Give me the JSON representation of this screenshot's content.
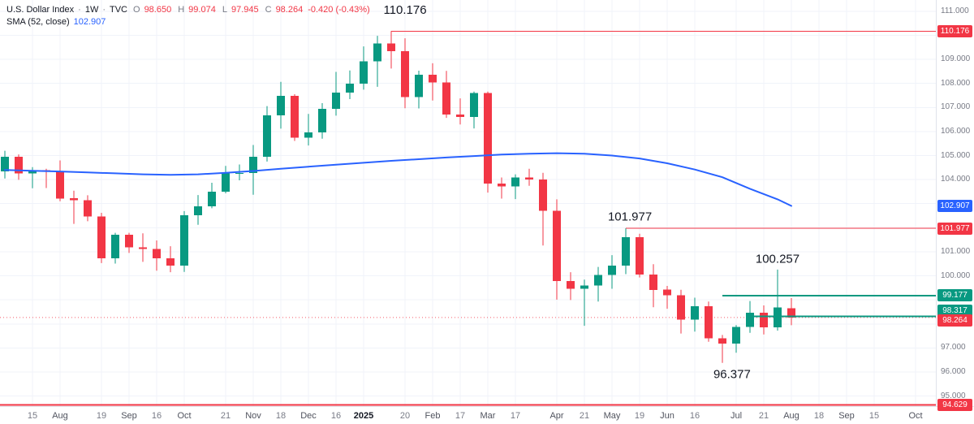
{
  "legend": {
    "symbol": "U.S. Dollar Index",
    "delimiter": "·",
    "interval": "1W",
    "exchange": "TVC",
    "o_key": "O",
    "o_val": "98.650",
    "h_key": "H",
    "h_val": "99.074",
    "l_key": "L",
    "l_val": "97.945",
    "c_key": "C",
    "c_val": "98.264",
    "change": "-0.420 (-0.43%)",
    "sma_label": "SMA (52, close)",
    "sma_value": "102.907"
  },
  "chart_data": {
    "type": "candlestick",
    "title": "U.S. Dollar Index · 1W · TVC",
    "x_unit": "week",
    "ylim": [
      94.58,
      111.47
    ],
    "grid": true,
    "current_price": 98.264,
    "colors": {
      "up": "#089981",
      "down": "#f23645",
      "sma": "#2962ff",
      "grid": "#f0f3fa",
      "level_red": "#f23645",
      "level_teal": "#089981"
    },
    "candles": [
      [
        104.35,
        105.2,
        104.05,
        104.95
      ],
      [
        104.95,
        105.05,
        103.99,
        104.25
      ],
      [
        104.25,
        104.52,
        103.64,
        104.4
      ],
      [
        104.4,
        104.45,
        103.65,
        104.32
      ],
      [
        104.32,
        104.8,
        103.1,
        103.22
      ],
      [
        103.22,
        103.54,
        102.16,
        103.14
      ],
      [
        103.14,
        103.35,
        102.27,
        102.46
      ],
      [
        102.46,
        102.62,
        100.53,
        100.72
      ],
      [
        100.72,
        101.79,
        100.51,
        101.7
      ],
      [
        101.7,
        101.79,
        100.95,
        101.19
      ],
      [
        101.19,
        101.77,
        100.58,
        101.11
      ],
      [
        101.11,
        101.47,
        100.21,
        100.72
      ],
      [
        100.72,
        101.23,
        100.15,
        100.42
      ],
      [
        100.42,
        102.69,
        100.16,
        102.52
      ],
      [
        102.52,
        103.36,
        102.12,
        102.89
      ],
      [
        102.89,
        103.87,
        102.81,
        103.49
      ],
      [
        103.49,
        104.57,
        103.43,
        104.26
      ],
      [
        104.26,
        104.63,
        103.97,
        104.28
      ],
      [
        104.28,
        105.44,
        103.37,
        104.95
      ],
      [
        104.95,
        107.06,
        104.75,
        106.67
      ],
      [
        106.67,
        108.07,
        106.12,
        107.49
      ],
      [
        107.49,
        107.55,
        105.61,
        105.74
      ],
      [
        105.74,
        106.73,
        105.42,
        105.97
      ],
      [
        105.97,
        107.18,
        105.7,
        106.95
      ],
      [
        106.95,
        108.48,
        106.66,
        107.62
      ],
      [
        107.62,
        108.54,
        107.35,
        107.99
      ],
      [
        107.99,
        109.54,
        107.74,
        108.92
      ],
      [
        108.92,
        109.98,
        107.86,
        109.66
      ],
      [
        109.66,
        110.176,
        108.62,
        109.35
      ],
      [
        109.35,
        109.88,
        106.97,
        107.44
      ],
      [
        107.44,
        108.53,
        106.96,
        108.37
      ],
      [
        108.37,
        108.84,
        107.29,
        108.04
      ],
      [
        108.04,
        108.52,
        106.57,
        106.71
      ],
      [
        106.71,
        107.38,
        106.29,
        106.61
      ],
      [
        106.61,
        107.66,
        106.13,
        107.61
      ],
      [
        107.61,
        107.66,
        103.46,
        103.84
      ],
      [
        103.84,
        104.09,
        103.21,
        103.72
      ],
      [
        103.72,
        104.22,
        103.19,
        104.09
      ],
      [
        104.09,
        104.45,
        103.74,
        104.01
      ],
      [
        104.01,
        104.28,
        101.26,
        102.7
      ],
      [
        102.7,
        103.18,
        99.01,
        99.78
      ],
      [
        99.78,
        100.15,
        98.99,
        99.46
      ],
      [
        99.46,
        99.84,
        97.92,
        99.59
      ],
      [
        99.59,
        100.37,
        98.93,
        100.03
      ],
      [
        100.03,
        100.86,
        99.46,
        100.42
      ],
      [
        100.42,
        101.977,
        100.07,
        101.6
      ],
      [
        101.6,
        101.75,
        99.93,
        100.05
      ],
      [
        100.05,
        100.48,
        98.69,
        99.42
      ],
      [
        99.42,
        99.58,
        98.63,
        99.19
      ],
      [
        99.19,
        99.42,
        97.6,
        98.18
      ],
      [
        98.18,
        99.09,
        97.68,
        98.74
      ],
      [
        98.74,
        98.93,
        97.26,
        97.4
      ],
      [
        97.4,
        97.54,
        96.377,
        97.18
      ],
      [
        97.18,
        97.95,
        96.8,
        97.87
      ],
      [
        97.87,
        98.95,
        97.63,
        98.46
      ],
      [
        98.46,
        98.77,
        97.56,
        97.85
      ],
      [
        97.85,
        100.257,
        97.72,
        98.68
      ],
      [
        98.65,
        99.074,
        97.945,
        98.264
      ]
    ],
    "sma": {
      "name": "SMA",
      "period": 52,
      "source": "close",
      "last_value": 102.907,
      "points": [
        [
          0,
          104.4
        ],
        [
          2,
          104.37
        ],
        [
          4,
          104.34
        ],
        [
          6,
          104.3
        ],
        [
          8,
          104.26
        ],
        [
          10,
          104.22
        ],
        [
          12,
          104.2
        ],
        [
          14,
          104.22
        ],
        [
          16,
          104.28
        ],
        [
          18,
          104.36
        ],
        [
          20,
          104.45
        ],
        [
          22,
          104.54
        ],
        [
          24,
          104.62
        ],
        [
          26,
          104.7
        ],
        [
          28,
          104.78
        ],
        [
          30,
          104.85
        ],
        [
          32,
          104.92
        ],
        [
          34,
          104.98
        ],
        [
          36,
          105.04
        ],
        [
          38,
          105.08
        ],
        [
          40,
          105.1
        ],
        [
          42,
          105.08
        ],
        [
          44,
          105.0
        ],
        [
          46,
          104.88
        ],
        [
          48,
          104.68
        ],
        [
          50,
          104.42
        ],
        [
          52,
          104.1
        ],
        [
          54,
          103.62
        ],
        [
          56,
          103.18
        ],
        [
          57,
          102.907
        ]
      ]
    },
    "levels": [
      {
        "price": 110.176,
        "from_bar": 28,
        "color": "#f23645",
        "width": 1
      },
      {
        "price": 101.977,
        "from_bar": 45,
        "color": "#f23645",
        "width": 1
      },
      {
        "price": 99.177,
        "from_bar": 52,
        "color": "#089981",
        "width": 2
      },
      {
        "price": 98.317,
        "from_bar": 54,
        "color": "#089981",
        "width": 2
      },
      {
        "price": 94.629,
        "from_bar": null,
        "color": "#f23645",
        "width": 2
      }
    ],
    "annotations": [
      {
        "text": "110.176",
        "bar": 29,
        "price": 110.9
      },
      {
        "text": "101.977",
        "bar": 45.3,
        "price": 102.3
      },
      {
        "text": "100.257",
        "bar": 56,
        "price": 100.55
      },
      {
        "text": "96.377",
        "bar": 52.7,
        "price": 95.75
      }
    ],
    "y_axis": {
      "labels": [
        {
          "text": "111.000",
          "price": 111
        },
        {
          "text": "109.000",
          "price": 109
        },
        {
          "text": "108.000",
          "price": 108
        },
        {
          "text": "107.000",
          "price": 107
        },
        {
          "text": "106.000",
          "price": 106
        },
        {
          "text": "105.000",
          "price": 105
        },
        {
          "text": "104.000",
          "price": 104
        },
        {
          "text": "101.000",
          "price": 101
        },
        {
          "text": "100.000",
          "price": 100
        },
        {
          "text": "98.000",
          "price": 98
        },
        {
          "text": "97.000",
          "price": 97
        },
        {
          "text": "96.000",
          "price": 96
        },
        {
          "text": "95.000",
          "price": 95
        }
      ],
      "badges": [
        {
          "text": "110.176",
          "price": 110.176,
          "bg": "#f23645",
          "dy": 0
        },
        {
          "text": "102.907",
          "price": 102.907,
          "bg": "#2962ff",
          "dy": 0
        },
        {
          "text": "101.977",
          "price": 101.977,
          "bg": "#f23645",
          "dy": 0
        },
        {
          "text": "99.177",
          "price": 99.177,
          "bg": "#089981",
          "dy": 0
        },
        {
          "text": "98.317",
          "price": 98.317,
          "bg": "#089981",
          "dy": -7
        },
        {
          "text": "98.264",
          "price": 98.264,
          "bg": "#f23645",
          "dy": 4
        },
        {
          "text": "94.629",
          "price": 94.629,
          "bg": "#f23645",
          "dy": 0
        }
      ]
    },
    "x_ticks": [
      {
        "bar": 2,
        "label": "15",
        "kind": "day"
      },
      {
        "bar": 4,
        "label": "Aug",
        "kind": "month"
      },
      {
        "bar": 7,
        "label": "19",
        "kind": "day"
      },
      {
        "bar": 9,
        "label": "Sep",
        "kind": "month"
      },
      {
        "bar": 11,
        "label": "16",
        "kind": "day"
      },
      {
        "bar": 13,
        "label": "Oct",
        "kind": "month"
      },
      {
        "bar": 16,
        "label": "21",
        "kind": "day"
      },
      {
        "bar": 18,
        "label": "Nov",
        "kind": "month"
      },
      {
        "bar": 20,
        "label": "18",
        "kind": "day"
      },
      {
        "bar": 22,
        "label": "Dec",
        "kind": "month"
      },
      {
        "bar": 24,
        "label": "16",
        "kind": "day"
      },
      {
        "bar": 26,
        "label": "2025",
        "kind": "year"
      },
      {
        "bar": 29,
        "label": "20",
        "kind": "day"
      },
      {
        "bar": 31,
        "label": "Feb",
        "kind": "month"
      },
      {
        "bar": 33,
        "label": "17",
        "kind": "day"
      },
      {
        "bar": 35,
        "label": "Mar",
        "kind": "month"
      },
      {
        "bar": 37,
        "label": "17",
        "kind": "day"
      },
      {
        "bar": 40,
        "label": "Apr",
        "kind": "month"
      },
      {
        "bar": 42,
        "label": "21",
        "kind": "day"
      },
      {
        "bar": 44,
        "label": "May",
        "kind": "month"
      },
      {
        "bar": 46,
        "label": "19",
        "kind": "day"
      },
      {
        "bar": 48,
        "label": "Jun",
        "kind": "month"
      },
      {
        "bar": 50,
        "label": "16",
        "kind": "day"
      },
      {
        "bar": 53,
        "label": "Jul",
        "kind": "month"
      },
      {
        "bar": 55,
        "label": "21",
        "kind": "day"
      },
      {
        "bar": 57,
        "label": "Aug",
        "kind": "month"
      },
      {
        "bar": 59,
        "label": "18",
        "kind": "day"
      },
      {
        "bar": 61,
        "label": "Sep",
        "kind": "month"
      },
      {
        "bar": 63,
        "label": "15",
        "kind": "day"
      },
      {
        "bar": 66,
        "label": "Oct",
        "kind": "month"
      }
    ]
  }
}
